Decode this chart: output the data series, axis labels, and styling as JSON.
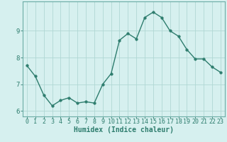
{
  "xlabel": "Humidex (Indice chaleur)",
  "ylabel": "",
  "x_values": [
    0,
    1,
    2,
    3,
    4,
    5,
    6,
    7,
    8,
    9,
    10,
    11,
    12,
    13,
    14,
    15,
    16,
    17,
    18,
    19,
    20,
    21,
    22,
    23
  ],
  "y_values": [
    7.7,
    7.3,
    6.6,
    6.2,
    6.4,
    6.5,
    6.3,
    6.35,
    6.3,
    7.0,
    7.4,
    8.65,
    8.9,
    8.7,
    9.5,
    9.7,
    9.5,
    9.0,
    8.8,
    8.3,
    7.95,
    7.95,
    7.65,
    7.45
  ],
  "line_color": "#2e7d6e",
  "marker_color": "#2e7d6e",
  "bg_color": "#d6f0ef",
  "grid_color": "#b0d8d4",
  "axis_color": "#6aaba5",
  "tick_color": "#2e7d6e",
  "ylim": [
    5.8,
    10.1
  ],
  "xlim": [
    -0.5,
    23.5
  ],
  "yticks": [
    6,
    7,
    8,
    9
  ],
  "xticks": [
    0,
    1,
    2,
    3,
    4,
    5,
    6,
    7,
    8,
    9,
    10,
    11,
    12,
    13,
    14,
    15,
    16,
    17,
    18,
    19,
    20,
    21,
    22,
    23
  ],
  "xlabel_fontsize": 7.0,
  "tick_fontsize": 6.0,
  "ytick_fontsize": 6.5,
  "line_width": 1.0,
  "marker_size": 2.5
}
